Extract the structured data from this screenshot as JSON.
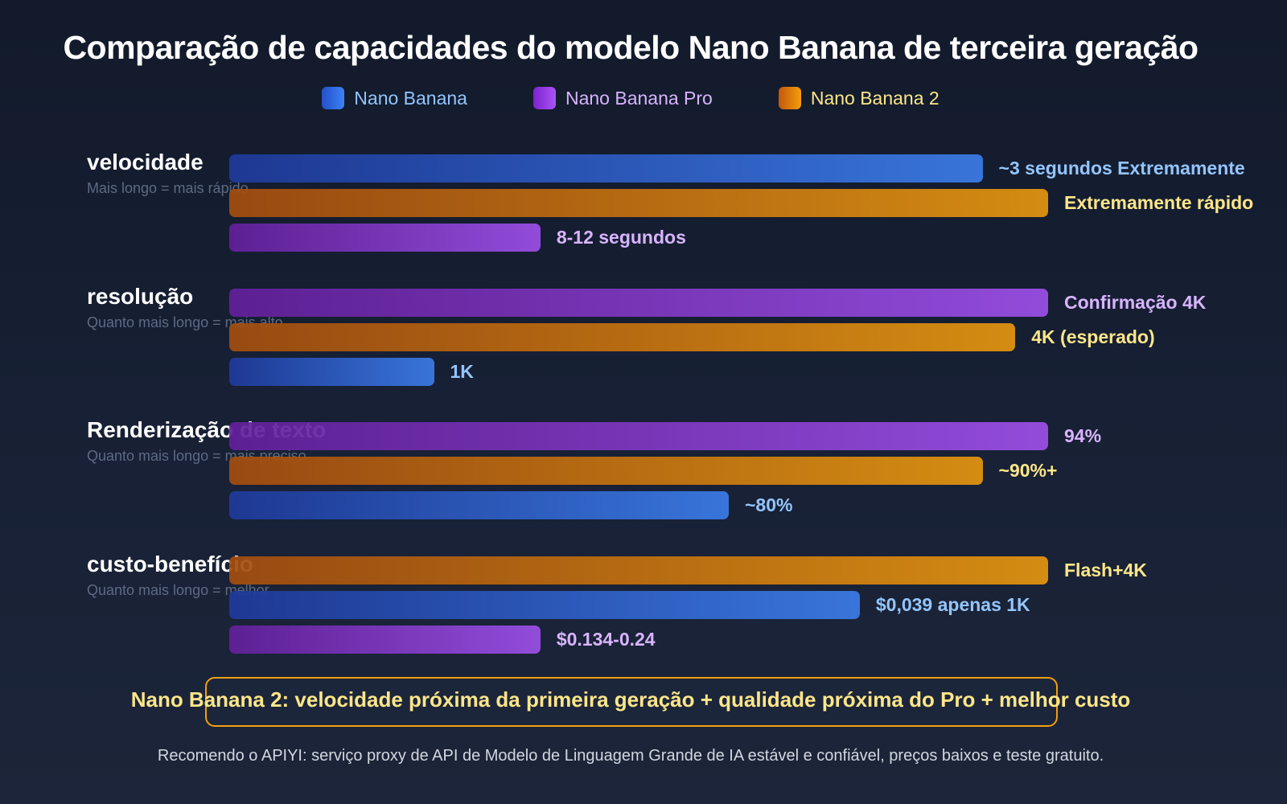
{
  "chart_data": {
    "type": "bar",
    "orientation": "horizontal",
    "title": "Comparação de capacidades do modelo Nano Banana de terceira geração",
    "legend_placement": "top",
    "grid": false,
    "legend": [
      {
        "name": "Nano Banana",
        "color": "#3b82f6",
        "label_color": "#93c5fd"
      },
      {
        "name": "Nano Banana Pro",
        "color": "#9333ea",
        "label_color": "#d8b4fe"
      },
      {
        "name": "Nano Banana 2",
        "color": "#f59e0b",
        "label_color": "#fde68a"
      }
    ],
    "groups": [
      {
        "category": "velocidade",
        "note": "Mais longo = mais rápido",
        "bars": [
          {
            "series": "Nano Banana",
            "value": 92,
            "label": "~3 segundos Extremamente"
          },
          {
            "series": "Nano Banana 2",
            "value": 100,
            "label": "Extremamente rápido"
          },
          {
            "series": "Nano Banana Pro",
            "value": 38,
            "label": "8-12 segundos"
          }
        ]
      },
      {
        "category": "resolução",
        "note": "Quanto mais longo = mais alto",
        "bars": [
          {
            "series": "Nano Banana Pro",
            "value": 100,
            "label": "Confirmação 4K"
          },
          {
            "series": "Nano Banana 2",
            "value": 96,
            "label": "4K (esperado)"
          },
          {
            "series": "Nano Banana",
            "value": 25,
            "label": "1K"
          }
        ]
      },
      {
        "category": "Renderização de texto",
        "note": "Quanto mais longo = mais preciso",
        "bars": [
          {
            "series": "Nano Banana Pro",
            "value": 100,
            "label": "94%"
          },
          {
            "series": "Nano Banana 2",
            "value": 92,
            "label": "~90%+"
          },
          {
            "series": "Nano Banana",
            "value": 61,
            "label": "~80%"
          }
        ]
      },
      {
        "category": "custo-benefício",
        "note": "Quanto mais longo = melhor",
        "bars": [
          {
            "series": "Nano Banana 2",
            "value": 100,
            "label": "Flash+4K"
          },
          {
            "series": "Nano Banana",
            "value": 77,
            "label": "$0,039 apenas 1K"
          },
          {
            "series": "Nano Banana Pro",
            "value": 38,
            "label": "$0.134-0.24"
          }
        ]
      }
    ],
    "xlim": [
      0,
      100
    ]
  },
  "callout": "Nano Banana 2: velocidade próxima da primeira geração + qualidade próxima do Pro + melhor custo",
  "footer": "Recomendo o APIYI: serviço proxy de API de Modelo de Linguagem Grande de IA estável e confiável, preços baixos e teste gratuito."
}
